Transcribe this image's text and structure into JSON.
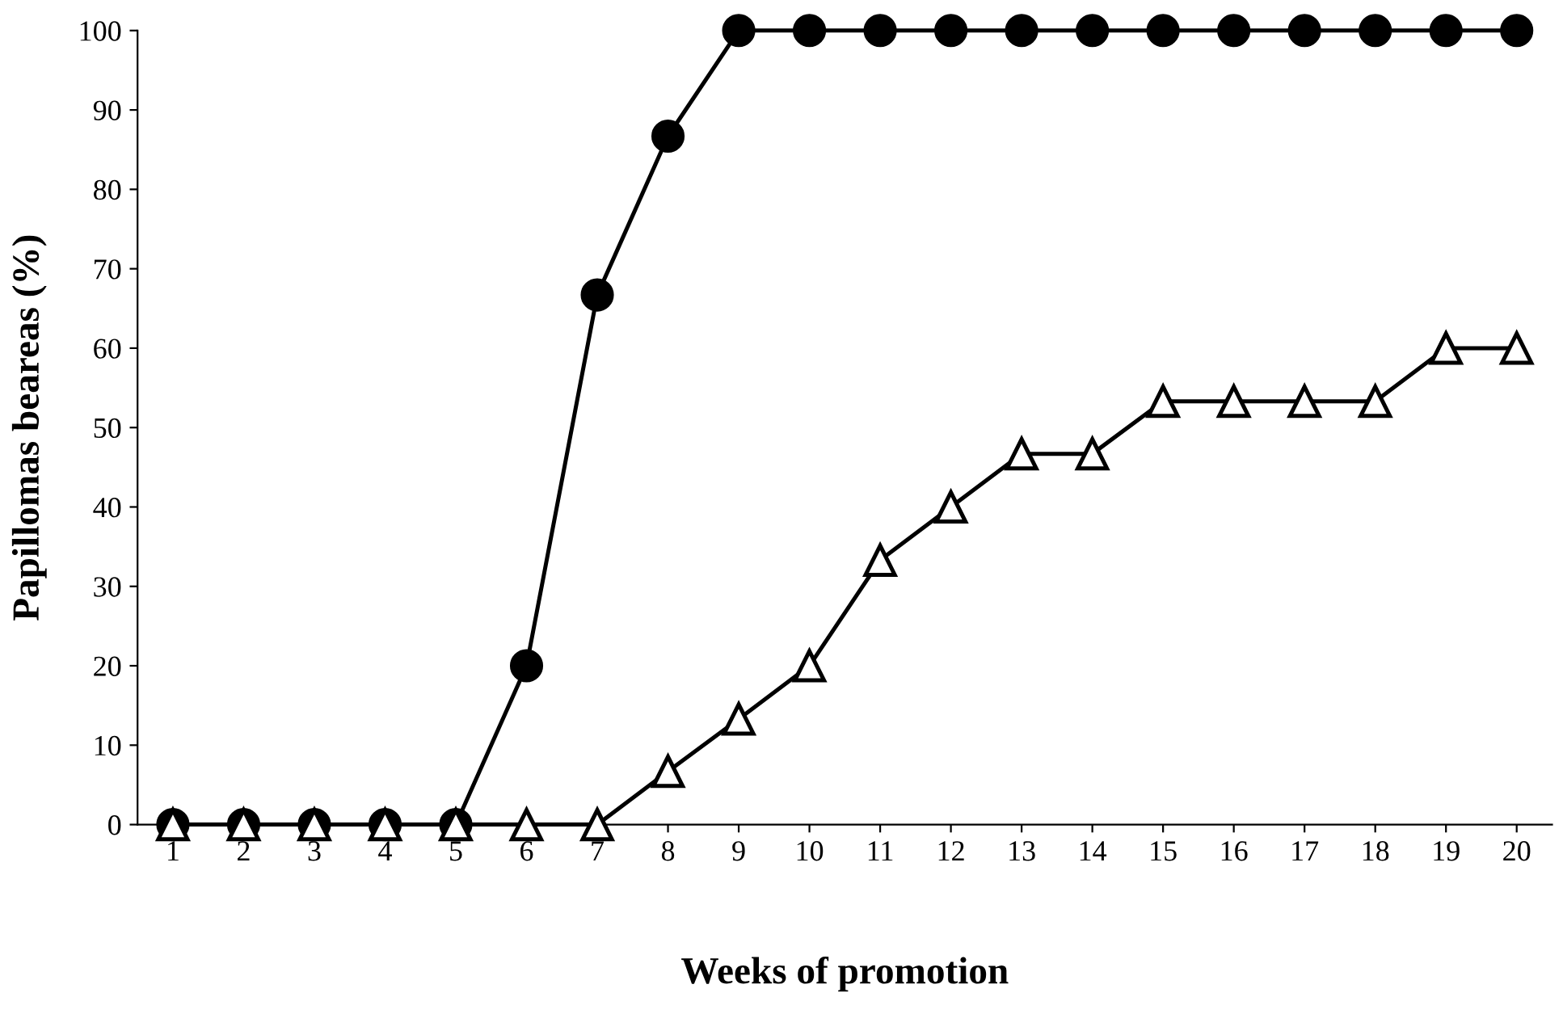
{
  "chart_data": {
    "type": "line",
    "xlabel": "Weeks of promotion",
    "ylabel": "Papillomas beareas (%)",
    "categories": [
      "1",
      "2",
      "3",
      "4",
      "5",
      "6",
      "7",
      "8",
      "9",
      "10",
      "11",
      "12",
      "13",
      "14",
      "15",
      "16",
      "17",
      "18",
      "19",
      "20"
    ],
    "ylim": [
      0,
      100
    ],
    "yticks": [
      0,
      10,
      20,
      30,
      40,
      50,
      60,
      70,
      80,
      90,
      100
    ],
    "grid": false,
    "legend": false,
    "line_style": "solid",
    "series": [
      {
        "color": "#000000",
        "marker": "circle",
        "values": [
          0,
          0,
          0,
          0,
          0,
          20,
          66.7,
          86.7,
          100,
          100,
          100,
          100,
          100,
          100,
          100,
          100,
          100,
          100,
          100,
          100
        ]
      },
      {
        "color": "#000000",
        "marker": "triangle",
        "values": [
          0,
          0,
          0,
          0,
          0,
          0,
          0,
          6.7,
          13.3,
          20,
          33.3,
          40,
          46.7,
          46.7,
          53.3,
          53.3,
          53.3,
          53.3,
          60,
          60
        ]
      }
    ]
  }
}
